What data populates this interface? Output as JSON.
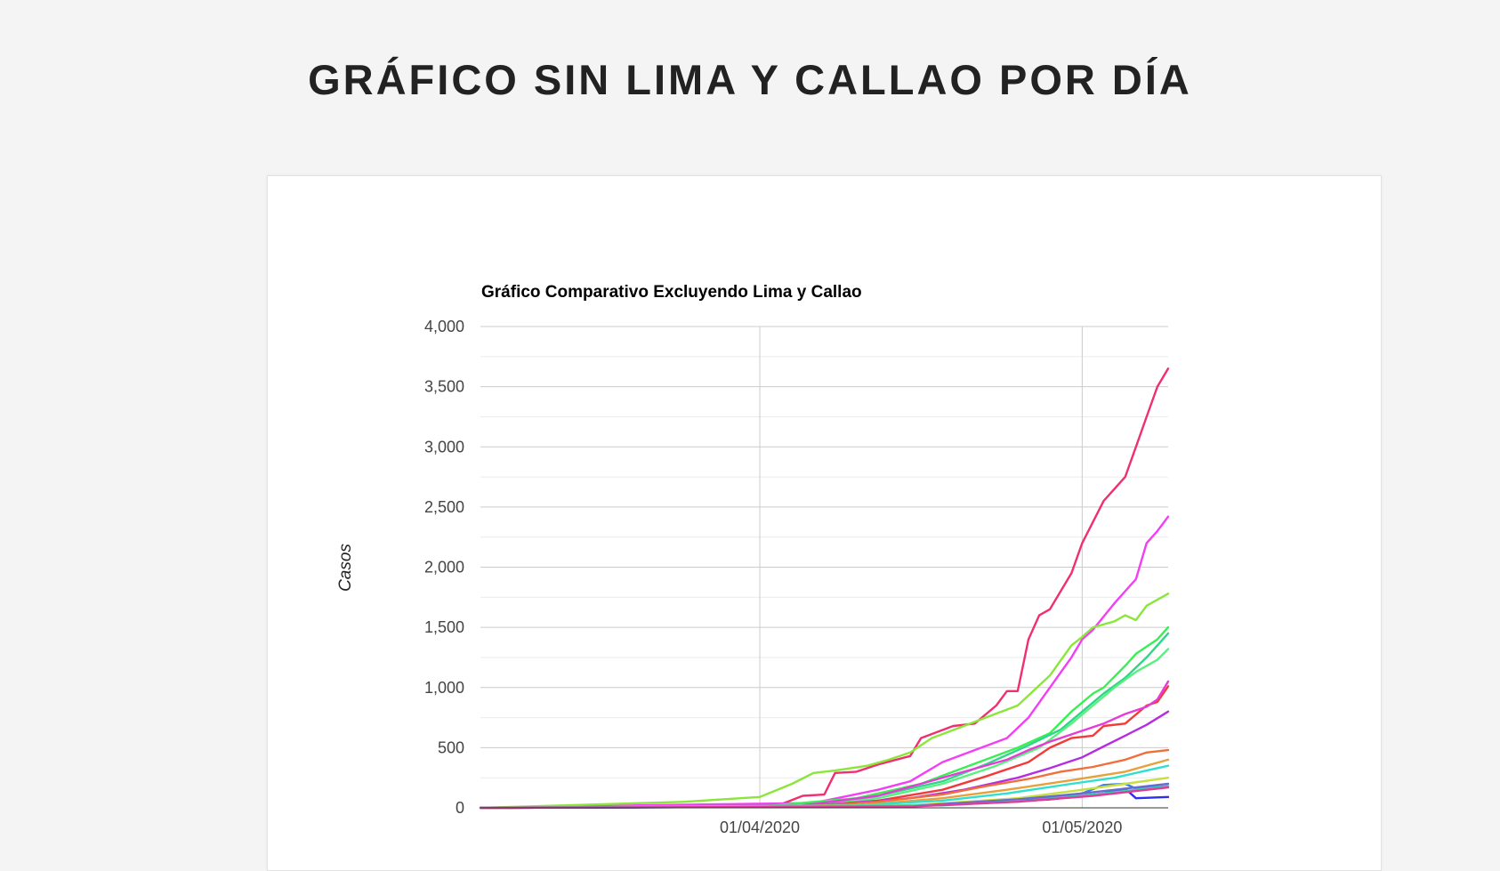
{
  "page": {
    "heading": "GRÁFICO SIN LIMA Y CALLAO POR DÍA"
  },
  "chart_data": {
    "type": "line",
    "title": "Gráfico Comparativo Excluyendo Lima y Callao",
    "xlabel": "",
    "ylabel": "Casos",
    "x_axis": {
      "type": "date",
      "range": [
        "2020-03-06",
        "2020-05-09"
      ],
      "tick_labels": [
        {
          "date": "2020-04-01",
          "label": "01/04/2020"
        },
        {
          "date": "2020-05-01",
          "label": "01/05/2020"
        }
      ]
    },
    "y_axis": {
      "range": [
        0,
        4000
      ],
      "ticks": [
        0,
        500,
        1000,
        1500,
        2000,
        2500,
        3000,
        3500,
        4000
      ],
      "tick_labels": [
        "0",
        "500",
        "1,000",
        "1,500",
        "2,000",
        "2,500",
        "3,000",
        "3,500",
        "4,000"
      ],
      "minor_gridlines": true
    },
    "grid": true,
    "legend": "none",
    "series": [
      {
        "color": "#f0306e",
        "points": [
          [
            "2020-03-06",
            0
          ],
          [
            "2020-03-31",
            20
          ],
          [
            "2020-04-03",
            30
          ],
          [
            "2020-04-05",
            100
          ],
          [
            "2020-04-07",
            110
          ],
          [
            "2020-04-08",
            290
          ],
          [
            "2020-04-10",
            300
          ],
          [
            "2020-04-12",
            360
          ],
          [
            "2020-04-15",
            430
          ],
          [
            "2020-04-16",
            580
          ],
          [
            "2020-04-19",
            680
          ],
          [
            "2020-04-21",
            700
          ],
          [
            "2020-04-23",
            850
          ],
          [
            "2020-04-24",
            970
          ],
          [
            "2020-04-25",
            970
          ],
          [
            "2020-04-26",
            1400
          ],
          [
            "2020-04-27",
            1600
          ],
          [
            "2020-04-28",
            1650
          ],
          [
            "2020-04-29",
            1800
          ],
          [
            "2020-04-30",
            1950
          ],
          [
            "2020-05-01",
            2200
          ],
          [
            "2020-05-03",
            2550
          ],
          [
            "2020-05-04",
            2650
          ],
          [
            "2020-05-05",
            2750
          ],
          [
            "2020-05-06",
            3000
          ],
          [
            "2020-05-07",
            3250
          ],
          [
            "2020-05-08",
            3500
          ],
          [
            "2020-05-09",
            3650
          ]
        ]
      },
      {
        "color": "#f23ef5",
        "points": [
          [
            "2020-03-06",
            0
          ],
          [
            "2020-03-20",
            20
          ],
          [
            "2020-04-06",
            40
          ],
          [
            "2020-04-12",
            150
          ],
          [
            "2020-04-15",
            220
          ],
          [
            "2020-04-18",
            380
          ],
          [
            "2020-04-21",
            480
          ],
          [
            "2020-04-24",
            580
          ],
          [
            "2020-04-26",
            750
          ],
          [
            "2020-04-28",
            1000
          ],
          [
            "2020-04-30",
            1250
          ],
          [
            "2020-05-01",
            1400
          ],
          [
            "2020-05-02",
            1480
          ],
          [
            "2020-05-04",
            1700
          ],
          [
            "2020-05-05",
            1800
          ],
          [
            "2020-05-06",
            1900
          ],
          [
            "2020-05-07",
            2200
          ],
          [
            "2020-05-08",
            2300
          ],
          [
            "2020-05-09",
            2420
          ]
        ]
      },
      {
        "color": "#8be63a",
        "points": [
          [
            "2020-03-06",
            0
          ],
          [
            "2020-03-25",
            50
          ],
          [
            "2020-04-01",
            90
          ],
          [
            "2020-04-04",
            200
          ],
          [
            "2020-04-06",
            290
          ],
          [
            "2020-04-08",
            310
          ],
          [
            "2020-04-11",
            350
          ],
          [
            "2020-04-13",
            400
          ],
          [
            "2020-04-15",
            460
          ],
          [
            "2020-04-17",
            580
          ],
          [
            "2020-04-20",
            680
          ],
          [
            "2020-04-22",
            750
          ],
          [
            "2020-04-25",
            850
          ],
          [
            "2020-04-28",
            1100
          ],
          [
            "2020-04-30",
            1350
          ],
          [
            "2020-05-01",
            1420
          ],
          [
            "2020-05-02",
            1500
          ],
          [
            "2020-05-04",
            1550
          ],
          [
            "2020-05-05",
            1600
          ],
          [
            "2020-05-06",
            1560
          ],
          [
            "2020-05-07",
            1680
          ],
          [
            "2020-05-09",
            1780
          ]
        ]
      },
      {
        "color": "#3aee55",
        "points": [
          [
            "2020-03-06",
            0
          ],
          [
            "2020-04-01",
            10
          ],
          [
            "2020-04-10",
            80
          ],
          [
            "2020-04-16",
            200
          ],
          [
            "2020-04-19",
            300
          ],
          [
            "2020-04-22",
            400
          ],
          [
            "2020-04-25",
            500
          ],
          [
            "2020-04-28",
            620
          ],
          [
            "2020-04-30",
            800
          ],
          [
            "2020-05-02",
            950
          ],
          [
            "2020-05-03",
            1000
          ],
          [
            "2020-05-05",
            1180
          ],
          [
            "2020-05-06",
            1280
          ],
          [
            "2020-05-08",
            1400
          ],
          [
            "2020-05-09",
            1500
          ]
        ]
      },
      {
        "color": "#2ed68a",
        "points": [
          [
            "2020-03-06",
            0
          ],
          [
            "2020-04-05",
            20
          ],
          [
            "2020-04-12",
            100
          ],
          [
            "2020-04-18",
            220
          ],
          [
            "2020-04-22",
            360
          ],
          [
            "2020-04-26",
            520
          ],
          [
            "2020-04-29",
            650
          ],
          [
            "2020-05-01",
            800
          ],
          [
            "2020-05-03",
            950
          ],
          [
            "2020-05-05",
            1080
          ],
          [
            "2020-05-07",
            1250
          ],
          [
            "2020-05-09",
            1450
          ]
        ]
      },
      {
        "color": "#5af080",
        "points": [
          [
            "2020-03-06",
            0
          ],
          [
            "2020-04-05",
            15
          ],
          [
            "2020-04-12",
            80
          ],
          [
            "2020-04-18",
            200
          ],
          [
            "2020-04-23",
            350
          ],
          [
            "2020-04-27",
            500
          ],
          [
            "2020-04-30",
            700
          ],
          [
            "2020-05-02",
            850
          ],
          [
            "2020-05-04",
            1000
          ],
          [
            "2020-05-06",
            1130
          ],
          [
            "2020-05-08",
            1230
          ],
          [
            "2020-05-09",
            1320
          ]
        ]
      },
      {
        "color": "#f23a3a",
        "points": [
          [
            "2020-03-06",
            0
          ],
          [
            "2020-04-05",
            10
          ],
          [
            "2020-04-12",
            60
          ],
          [
            "2020-04-18",
            150
          ],
          [
            "2020-04-22",
            260
          ],
          [
            "2020-04-26",
            380
          ],
          [
            "2020-04-28",
            500
          ],
          [
            "2020-04-30",
            580
          ],
          [
            "2020-05-02",
            600
          ],
          [
            "2020-05-03",
            680
          ],
          [
            "2020-05-05",
            700
          ],
          [
            "2020-05-07",
            850
          ],
          [
            "2020-05-08",
            880
          ],
          [
            "2020-05-09",
            1010
          ]
        ]
      },
      {
        "color": "#e83ad8",
        "points": [
          [
            "2020-03-06",
            0
          ],
          [
            "2020-04-05",
            20
          ],
          [
            "2020-04-12",
            100
          ],
          [
            "2020-04-16",
            200
          ],
          [
            "2020-04-20",
            300
          ],
          [
            "2020-04-24",
            400
          ],
          [
            "2020-04-26",
            480
          ],
          [
            "2020-04-28",
            550
          ],
          [
            "2020-05-01",
            640
          ],
          [
            "2020-05-03",
            700
          ],
          [
            "2020-05-05",
            780
          ],
          [
            "2020-05-07",
            840
          ],
          [
            "2020-05-08",
            900
          ],
          [
            "2020-05-09",
            1050
          ]
        ]
      },
      {
        "color": "#b42ee0",
        "points": [
          [
            "2020-03-06",
            0
          ],
          [
            "2020-04-05",
            10
          ],
          [
            "2020-04-15",
            80
          ],
          [
            "2020-04-20",
            150
          ],
          [
            "2020-04-25",
            250
          ],
          [
            "2020-04-28",
            330
          ],
          [
            "2020-05-01",
            420
          ],
          [
            "2020-05-03",
            510
          ],
          [
            "2020-05-05",
            600
          ],
          [
            "2020-05-07",
            690
          ],
          [
            "2020-05-09",
            800
          ]
        ]
      },
      {
        "color": "#f06e3a",
        "points": [
          [
            "2020-03-06",
            0
          ],
          [
            "2020-04-05",
            10
          ],
          [
            "2020-04-12",
            50
          ],
          [
            "2020-04-18",
            110
          ],
          [
            "2020-04-22",
            180
          ],
          [
            "2020-04-26",
            240
          ],
          [
            "2020-04-29",
            300
          ],
          [
            "2020-05-02",
            340
          ],
          [
            "2020-05-05",
            400
          ],
          [
            "2020-05-07",
            460
          ],
          [
            "2020-05-09",
            480
          ]
        ]
      },
      {
        "color": "#e8a03a",
        "points": [
          [
            "2020-03-06",
            0
          ],
          [
            "2020-04-10",
            20
          ],
          [
            "2020-04-18",
            80
          ],
          [
            "2020-04-24",
            150
          ],
          [
            "2020-04-30",
            230
          ],
          [
            "2020-05-05",
            300
          ],
          [
            "2020-05-09",
            400
          ]
        ]
      },
      {
        "color": "#2ee0d0",
        "points": [
          [
            "2020-03-06",
            0
          ],
          [
            "2020-04-10",
            20
          ],
          [
            "2020-04-18",
            60
          ],
          [
            "2020-04-24",
            120
          ],
          [
            "2020-04-30",
            200
          ],
          [
            "2020-05-04",
            250
          ],
          [
            "2020-05-07",
            310
          ],
          [
            "2020-05-09",
            350
          ]
        ]
      },
      {
        "color": "#3a7af0",
        "points": [
          [
            "2020-03-06",
            0
          ],
          [
            "2020-04-12",
            10
          ],
          [
            "2020-04-22",
            50
          ],
          [
            "2020-04-28",
            90
          ],
          [
            "2020-05-01",
            120
          ],
          [
            "2020-05-03",
            190
          ],
          [
            "2020-05-05",
            200
          ],
          [
            "2020-05-06",
            160
          ],
          [
            "2020-05-09",
            180
          ]
        ]
      },
      {
        "color": "#2e2ef0",
        "points": [
          [
            "2020-03-06",
            0
          ],
          [
            "2020-04-12",
            10
          ],
          [
            "2020-04-22",
            40
          ],
          [
            "2020-04-28",
            70
          ],
          [
            "2020-05-03",
            120
          ],
          [
            "2020-05-05",
            160
          ],
          [
            "2020-05-06",
            80
          ],
          [
            "2020-05-09",
            90
          ]
        ]
      },
      {
        "color": "#c8e03a",
        "points": [
          [
            "2020-03-06",
            0
          ],
          [
            "2020-04-15",
            20
          ],
          [
            "2020-04-25",
            80
          ],
          [
            "2020-05-01",
            150
          ],
          [
            "2020-05-05",
            200
          ],
          [
            "2020-05-09",
            250
          ]
        ]
      },
      {
        "color": "#6a6ad0",
        "points": [
          [
            "2020-03-06",
            0
          ],
          [
            "2020-04-15",
            15
          ],
          [
            "2020-04-25",
            70
          ],
          [
            "2020-05-01",
            120
          ],
          [
            "2020-05-05",
            160
          ],
          [
            "2020-05-09",
            200
          ]
        ]
      },
      {
        "color": "#3ad0b0",
        "points": [
          [
            "2020-03-06",
            0
          ],
          [
            "2020-04-18",
            20
          ],
          [
            "2020-04-26",
            60
          ],
          [
            "2020-05-02",
            110
          ],
          [
            "2020-05-06",
            150
          ],
          [
            "2020-05-09",
            180
          ]
        ]
      },
      {
        "color": "#e03a9a",
        "points": [
          [
            "2020-03-06",
            0
          ],
          [
            "2020-04-15",
            10
          ],
          [
            "2020-04-25",
            50
          ],
          [
            "2020-05-02",
            100
          ],
          [
            "2020-05-06",
            140
          ],
          [
            "2020-05-09",
            170
          ]
        ]
      }
    ]
  }
}
